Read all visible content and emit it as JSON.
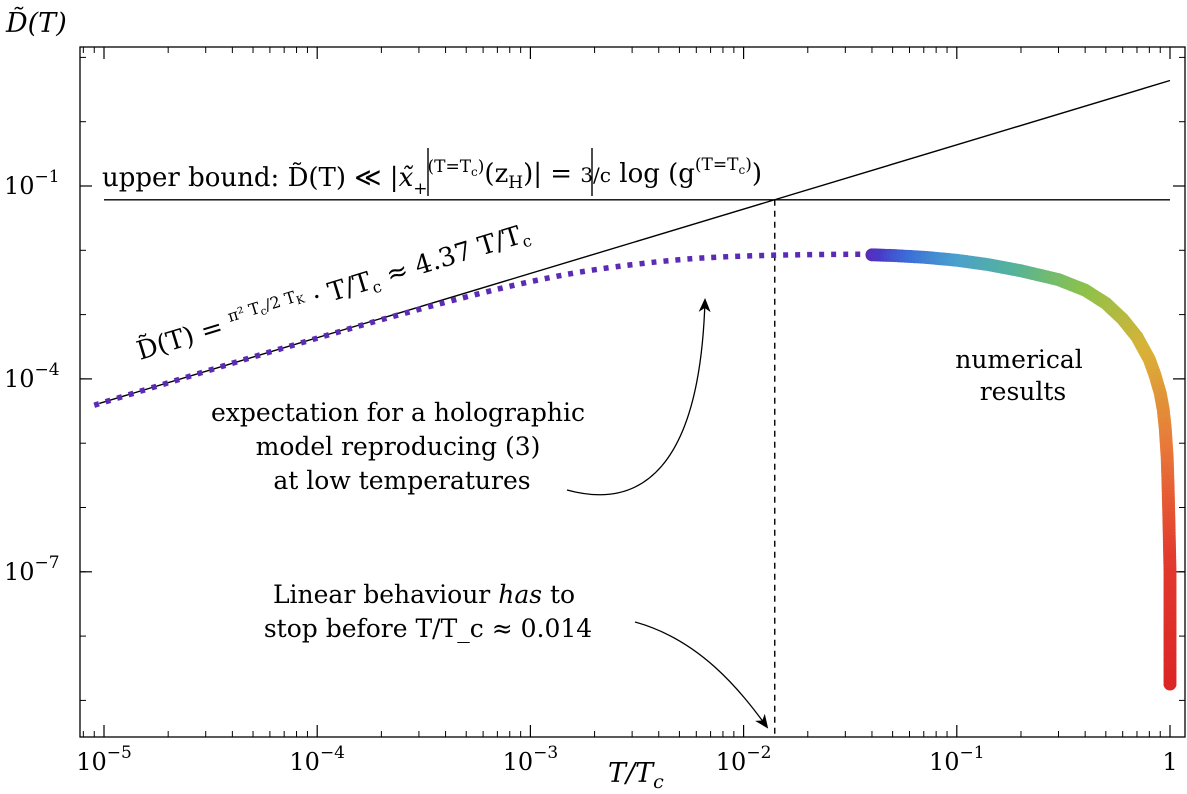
{
  "chart_data": {
    "type": "scatter",
    "xscale": "log",
    "yscale": "log",
    "xlabel": "T/T_c",
    "ylabel": "D̃(T)",
    "xlim": [
      8.5e-06,
      1.1
    ],
    "ylim": [
      1.2e-09,
      6
    ],
    "x_ticks": [
      {
        "value": 1e-05,
        "mantissa": "10",
        "exp": "−5"
      },
      {
        "value": 0.0001,
        "mantissa": "10",
        "exp": "−4"
      },
      {
        "value": 0.001,
        "mantissa": "10",
        "exp": "−3"
      },
      {
        "value": 0.01,
        "mantissa": "10",
        "exp": "−2"
      },
      {
        "value": 0.1,
        "mantissa": "10",
        "exp": "−1"
      },
      {
        "value": 1,
        "mantissa": "1",
        "exp": ""
      }
    ],
    "y_ticks": [
      {
        "value": 0.1,
        "mantissa": "10",
        "exp": "−1"
      },
      {
        "value": 0.0001,
        "mantissa": "10",
        "exp": "−4"
      },
      {
        "value": 1e-07,
        "mantissa": "10",
        "exp": "−7"
      }
    ],
    "upper_bound": {
      "value": 0.061,
      "text": "upper bound: D̃(T) ≪ |x̃₊^(T=Tc)(z_H)| = (3/c) log (g^(T=Tc))"
    },
    "linear_fit": {
      "slope": 4.37,
      "label": "D̃(T) = (π² Tc / 2 TK) · T/Tc ≈ 4.37 T/Tc"
    },
    "crossing": {
      "x": 0.014,
      "y": 0.061
    },
    "expectation_curve": {
      "x": [
        9e-06,
        2e-05,
        5e-05,
        0.0001,
        0.0002,
        0.0005,
        0.001,
        0.002,
        0.005,
        0.01,
        0.02,
        0.04
      ],
      "y": [
        3.9e-05,
        8.7e-05,
        0.00022,
        0.00043,
        0.00084,
        0.0019,
        0.0033,
        0.0051,
        0.0073,
        0.0082,
        0.0086,
        0.0087
      ]
    },
    "numerical_results": {
      "x": [
        0.04,
        0.05,
        0.07,
        0.1,
        0.14,
        0.2,
        0.3,
        0.4,
        0.5,
        0.6,
        0.7,
        0.8,
        0.85,
        0.9,
        0.93,
        0.95,
        0.97,
        0.98,
        0.99,
        1.0,
        1.0,
        1.0,
        1.0,
        1.0,
        1.0
      ],
      "y": [
        0.0085,
        0.0083,
        0.0078,
        0.007,
        0.006,
        0.0048,
        0.0035,
        0.0024,
        0.0015,
        0.00085,
        0.00045,
        0.0002,
        0.000115,
        6e-05,
        3.3e-05,
        1.7e-05,
        6e-06,
        2e-06,
        5e-07,
        1e-07,
        2e-08,
        8e-09,
        4e-09,
        2.5e-09,
        1.8e-09
      ]
    },
    "color_scale": [
      "#5b2bb5",
      "#4a39c8",
      "#3b6fd8",
      "#4a9fce",
      "#55b39a",
      "#8cc24a",
      "#d9b237",
      "#e8793a",
      "#e23b2e",
      "#dc2626"
    ]
  },
  "annotations": {
    "numerical_results": [
      "numerical",
      "results"
    ],
    "expectation": [
      "expectation for a holographic",
      "model reproducing (3)",
      "at low temperatures"
    ],
    "linear_limit": {
      "pre": "Linear behaviour ",
      "emph": "has",
      "post": " to",
      "line2": "stop before T/T_c ≈ 0.014"
    }
  }
}
